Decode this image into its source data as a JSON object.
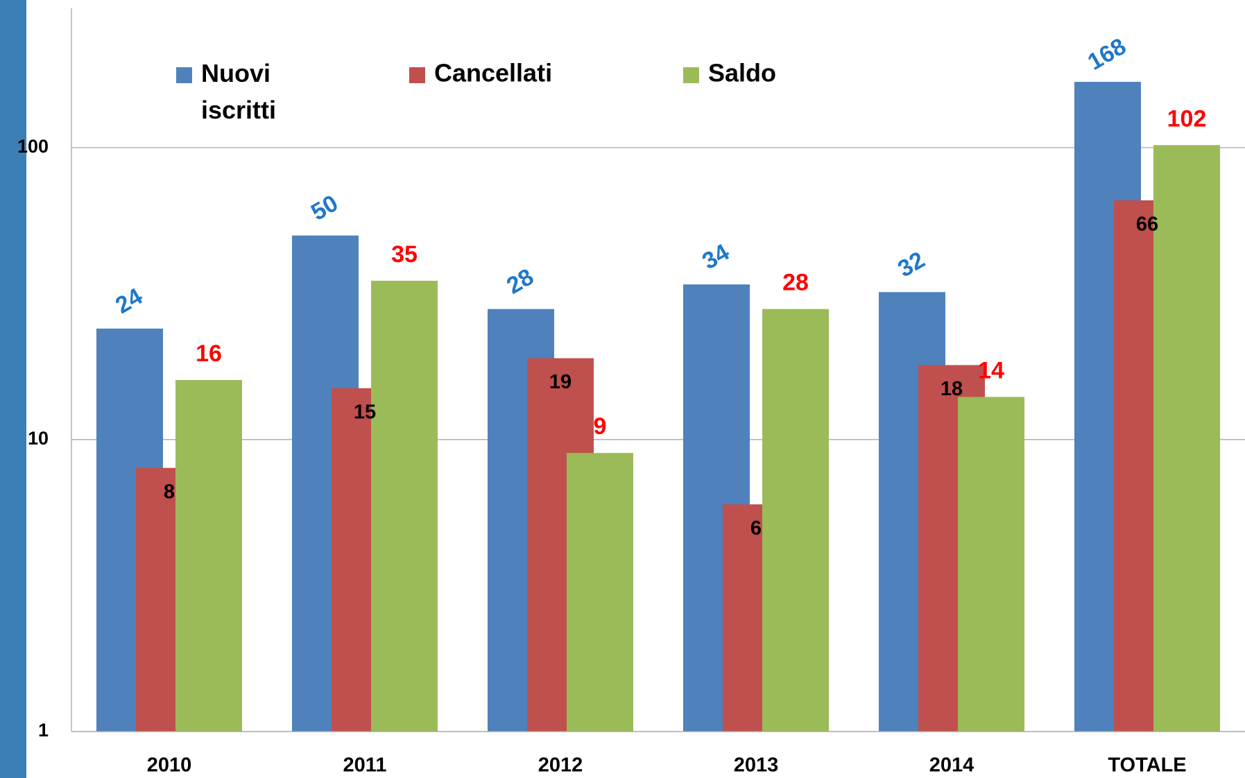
{
  "chart_data": {
    "type": "bar",
    "log_scale": true,
    "grid": true,
    "categories": [
      "2010",
      "2011",
      "2012",
      "2013",
      "2014",
      "TOTALE"
    ],
    "series": [
      {
        "name": "Nuovi iscritti",
        "color": "#4f81bd",
        "label_color": "#1f78c8",
        "values": [
          24,
          50,
          28,
          34,
          32,
          168
        ]
      },
      {
        "name": "Cancellati",
        "color": "#c0504d",
        "label_color": "#000000",
        "values": [
          8,
          15,
          19,
          6,
          18,
          66
        ]
      },
      {
        "name": "Saldo",
        "color": "#9bbb59",
        "label_color": "#ff0000",
        "values": [
          16,
          35,
          9,
          28,
          14,
          102
        ]
      }
    ],
    "ylim": [
      1,
      300
    ],
    "yticks": [
      1,
      10,
      100
    ]
  }
}
